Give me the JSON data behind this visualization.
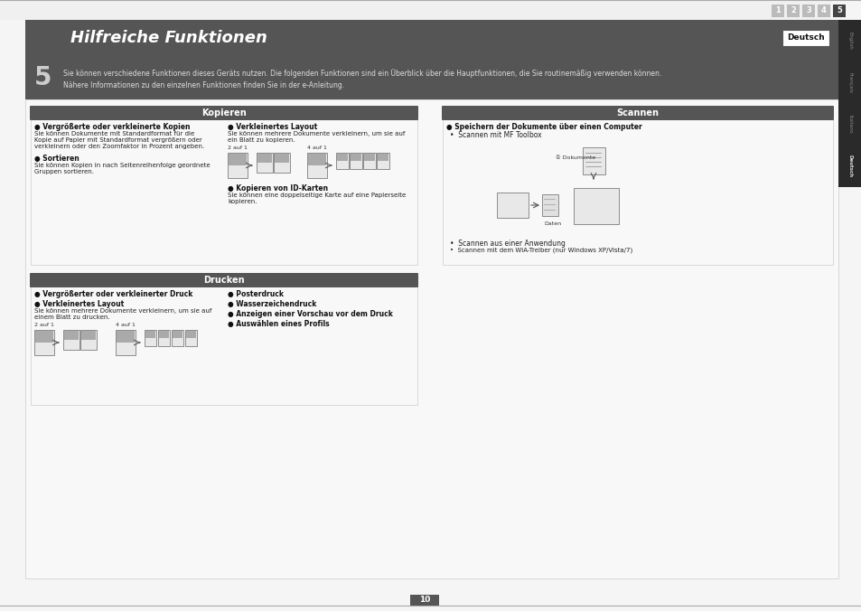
{
  "title": "Hilfreiche Funktionen",
  "page_num": "10",
  "chapter_num": "5",
  "lang_active": "Deutsch",
  "lang_tabs": [
    "English",
    "Français",
    "Italiano",
    "Deutsch"
  ],
  "nav_numbers": [
    "1",
    "2",
    "3",
    "4",
    "5"
  ],
  "nav_active": 5,
  "intro_line1": "Sie können verschiedene Funktionen dieses Geräts nutzen. Die folgenden Funktionen sind ein Überblick über die Hauptfunktionen, die Sie routinemäßig verwenden können.",
  "intro_line2": "Nähere Informationen zu den einzelnen Funktionen finden Sie in der e-Anleitung.",
  "kopieren_title": "Kopieren",
  "kopieren_lc": [
    {
      "bold": "● Vergrößerte oder verkleinerte Kopien",
      "lines": [
        "Sie können Dokumente mit Standardformat für die",
        "Kopie auf Papier mit Standardformat vergrößern oder",
        "verkleinern oder den Zoomfaktor in Prozent angeben."
      ]
    },
    {
      "bold": "● Sortieren",
      "lines": [
        "Sie können Kopien in nach Seitenreihenfolge geordnete",
        "Gruppen sortieren."
      ]
    }
  ],
  "kopieren_rc": [
    {
      "bold": "● Verkleinertes Layout",
      "lines": [
        "Sie können mehrere Dokumente verkleinern, um sie auf",
        "ein Blatt zu kopieren."
      ]
    },
    {
      "bold": "● Kopieren von ID-Karten",
      "lines": [
        "Sie können eine doppelseitige Karte auf eine Papierseite",
        "kopieren."
      ]
    }
  ],
  "scannen_title": "Scannen",
  "scannen_bold": "● Speichern der Dokumente über einen Computer",
  "scannen_bullets": [
    "•  Scannen mit MF Toolbox",
    "•  Scannen aus einer Anwendung",
    "•  Scannen mit dem WIA-Treiber (nur Windows XP/Vista/7)"
  ],
  "drucken_title": "Drucken",
  "drucken_lc": [
    {
      "bold": "● Vergrößerter oder verkleinerter Druck",
      "lines": []
    },
    {
      "bold": "● Verkleinertes Layout",
      "lines": [
        "Sie können mehrere Dokumente verkleinern, um sie auf",
        "einem Blatt zu drucken."
      ]
    }
  ],
  "drucken_rc": [
    {
      "bold": "● Posterdruck",
      "lines": []
    },
    {
      "bold": "● Wasserzeichendruck",
      "lines": []
    },
    {
      "bold": "● Anzeigen einer Vorschau vor dem Druck",
      "lines": []
    },
    {
      "bold": "● Auswählen eines Profils",
      "lines": []
    }
  ],
  "bg_outer": "#c8c8c8",
  "bg_page": "#f5f5f5",
  "header_bg": "#555555",
  "header_text": "#ffffff",
  "intro_bg": "#666666",
  "intro_text_color": "#dddddd",
  "section_hdr_bg": "#555555",
  "section_hdr_text": "#ffffff",
  "body_text": "#222222",
  "bold_text": "#111111",
  "nav_active_bg": "#444444",
  "nav_inactive_bg": "#bbbbbb",
  "nav_text": "#ffffff",
  "sidebar_bg": "#2a2a2a",
  "sidebar_text": "#cccccc",
  "deutsch_bg": "#ffffff",
  "deutsch_border": "#555555",
  "deutsch_text": "#111111",
  "page_num_bg": "#555555",
  "page_num_text": "#ffffff",
  "border_color": "#aaaaaa"
}
